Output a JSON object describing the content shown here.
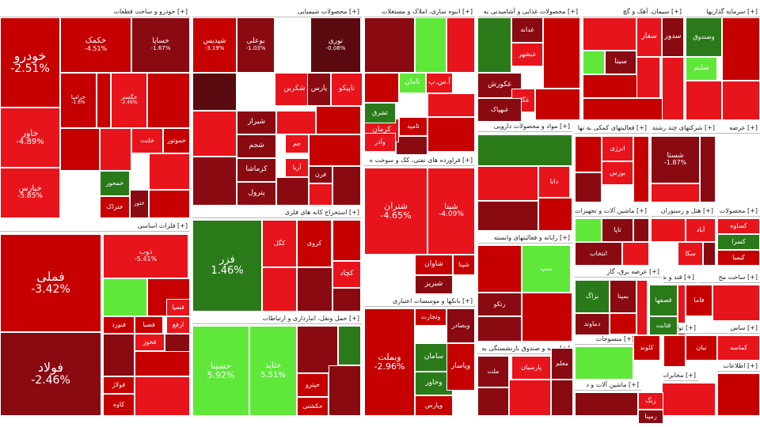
{
  "chart_data": {
    "type": "treemap",
    "colors": {
      "strong_red": "#c60000",
      "red": "#e8141c",
      "dark_red": "#8a0a12",
      "maroon": "#5a0a0e",
      "green": "#2b7a1a",
      "bright_green": "#5fe83a",
      "light_green": "#7df05a"
    },
    "sectors": [
      {
        "label": "[+] خودرو و ساخت قطعات",
        "tiles": [
          {
            "symbol": "خودرو",
            "value": "-2.51%"
          },
          {
            "symbol": "خاور",
            "value": "-4.89%"
          },
          {
            "symbol": "خپارس",
            "value": "-5.85%"
          },
          {
            "symbol": "خکمک",
            "value": "-4.51%"
          },
          {
            "symbol": "خساپا",
            "value": "-1.67%"
          },
          {
            "symbol": "خرامیا",
            "value": "-1.6%"
          },
          {
            "symbol": "خگستر",
            "value": "-2.46%"
          },
          {
            "symbol": "خلنت",
            "value": ""
          },
          {
            "symbol": "خموتور",
            "value": ""
          },
          {
            "symbol": "خمحور",
            "value": ""
          },
          {
            "symbol": "ختراک",
            "value": ""
          },
          {
            "symbol": "ختور",
            "value": ""
          }
        ]
      },
      {
        "label": "[+] محصولات شیمیایی",
        "tiles": [
          {
            "symbol": "شپدیس",
            "value": "-3.19%"
          },
          {
            "symbol": "بوعلی",
            "value": "-1.03%"
          },
          {
            "symbol": "نوری",
            "value": "-0.08%"
          },
          {
            "symbol": "شکربن",
            "value": ""
          },
          {
            "symbol": "پارس",
            "value": ""
          },
          {
            "symbol": "تاپیکو",
            "value": ""
          },
          {
            "symbol": "شیراز",
            "value": ""
          },
          {
            "symbol": "شجم",
            "value": ""
          },
          {
            "symbol": "کرماشا",
            "value": ""
          },
          {
            "symbol": "پترول",
            "value": ""
          },
          {
            "symbol": "جم",
            "value": ""
          },
          {
            "symbol": "آریا",
            "value": ""
          },
          {
            "symbol": "فرن",
            "value": ""
          }
        ]
      },
      {
        "label": "[+] انبوه سازی، املاک و مستغلات",
        "tiles": [
          {
            "symbol": "کرمان",
            "value": ""
          },
          {
            "symbol": "ثامان",
            "value": ""
          },
          {
            "symbol": "آ.س.پ",
            "value": ""
          },
          {
            "symbol": "ثامید",
            "value": ""
          },
          {
            "symbol": "ثشرق",
            "value": ""
          },
          {
            "symbol": "وآذر",
            "value": ""
          }
        ]
      },
      {
        "label": "[+] محصولات غذایی و آشامیدنی به",
        "tiles": [
          {
            "symbol": "غدانه",
            "value": ""
          },
          {
            "symbol": "غبشهر",
            "value": ""
          },
          {
            "symbol": "غکورش",
            "value": ""
          },
          {
            "symbol": "غگل",
            "value": ""
          },
          {
            "symbol": "غبهپاک",
            "value": ""
          }
        ]
      },
      {
        "label": "[+] سیمان، آهک و گچ",
        "tiles": [
          {
            "symbol": "سفار",
            "value": ""
          },
          {
            "symbol": "سدور",
            "value": ""
          },
          {
            "symbol": "سیتا",
            "value": ""
          },
          {
            "symbol": "سلیم",
            "value": ""
          }
        ]
      },
      {
        "label": "[+] سرمایه گذاریها",
        "tiles": [
          {
            "symbol": "وصندوق",
            "value": ""
          }
        ]
      },
      {
        "label": "[+] فلزات اساسی",
        "tiles": [
          {
            "symbol": "فملی",
            "value": "-3.42%"
          },
          {
            "symbol": "فولاد",
            "value": "-2.46%"
          },
          {
            "symbol": "ذوب",
            "value": "-5.41%"
          },
          {
            "symbol": "فخوز",
            "value": ""
          },
          {
            "symbol": "فصبا",
            "value": ""
          },
          {
            "symbol": "فسپا",
            "value": ""
          },
          {
            "symbol": "ارفع",
            "value": ""
          },
          {
            "symbol": "فنورد",
            "value": ""
          },
          {
            "symbol": "فولاژ",
            "value": ""
          },
          {
            "symbol": "کاوه",
            "value": ""
          }
        ]
      },
      {
        "label": "[+] استخراج کانه های فلزی",
        "tiles": [
          {
            "symbol": "فزر",
            "value": "1.46%"
          },
          {
            "symbol": "کگل",
            "value": ""
          },
          {
            "symbol": "کچاد",
            "value": ""
          },
          {
            "symbol": "کروی",
            "value": ""
          }
        ]
      },
      {
        "label": "[+] حمل ونقل، انبارداری و ارتباطات",
        "tiles": [
          {
            "symbol": "حسینا",
            "value": "5.92%"
          },
          {
            "symbol": "حتاید",
            "value": "5.51%"
          },
          {
            "symbol": "حپترو",
            "value": ""
          },
          {
            "symbol": "حکشتی",
            "value": ""
          }
        ]
      },
      {
        "label": "[+] فراورده های نفتی، کک و سوخت ه",
        "tiles": [
          {
            "symbol": "شتران",
            "value": "-4.65%"
          },
          {
            "symbol": "شبنا",
            "value": "-4.09%"
          },
          {
            "symbol": "شاوان",
            "value": ""
          },
          {
            "symbol": "شبریز",
            "value": ""
          },
          {
            "symbol": "شپنا",
            "value": ""
          }
        ]
      },
      {
        "label": "[+] بانکها و موسسات اعتباری",
        "tiles": [
          {
            "symbol": "وبملت",
            "value": "-2.96%"
          },
          {
            "symbol": "وتجارت",
            "value": ""
          },
          {
            "symbol": "وبصادر",
            "value": ""
          },
          {
            "symbol": "سامان",
            "value": ""
          },
          {
            "symbol": "وخاور",
            "value": ""
          },
          {
            "symbol": "وپاسار",
            "value": ""
          },
          {
            "symbol": "وپارس",
            "value": ""
          }
        ]
      },
      {
        "label": "[+] مواد و محصولات دارویی",
        "tiles": [
          {
            "symbol": "دانا",
            "value": ""
          }
        ]
      },
      {
        "label": "[+] رایانه و فعالیتهای وابسته",
        "tiles": [
          {
            "symbol": "رتکو",
            "value": ""
          },
          {
            "symbol": "سپ",
            "value": ""
          }
        ]
      },
      {
        "label": "[+] عرضه برق، گاز",
        "tiles": [
          {
            "symbol": "بزاگ",
            "value": ""
          },
          {
            "symbol": "دماوند",
            "value": ""
          },
          {
            "symbol": "بمپنا",
            "value": ""
          }
        ]
      },
      {
        "label": "[+] فعالیتهای کمکی به نها",
        "tiles": [
          {
            "symbol": "انرژی",
            "value": ""
          },
          {
            "symbol": "بورس",
            "value": ""
          }
        ]
      },
      {
        "label": "[+] شرکتهای چند رشته",
        "tiles": [
          {
            "symbol": "شستا",
            "value": "-1.87%"
          }
        ]
      },
      {
        "label": "[+] ماشین آلات و تجهیزات",
        "tiles": [
          {
            "symbol": "تاپا",
            "value": ""
          },
          {
            "symbol": "انتخاب",
            "value": ""
          }
        ]
      },
      {
        "label": "[+] هتل و رستوران",
        "tiles": [
          {
            "symbol": "آباد",
            "value": ""
          },
          {
            "symbol": "سکا",
            "value": ""
          }
        ]
      },
      {
        "label": "[+] محصولات کانی غیرفلزی",
        "tiles": [
          {
            "symbol": "کساوه",
            "value": ""
          },
          {
            "symbol": "کسرا",
            "value": ""
          },
          {
            "symbol": "کیمیا",
            "value": ""
          }
        ]
      },
      {
        "label": "[+] قند و شکر",
        "tiles": [
          {
            "symbol": "قصفها",
            "value": ""
          },
          {
            "symbol": "قثابت",
            "value": ""
          }
        ]
      },
      {
        "label": "[+] ساخت مح",
        "tiles": [
          {
            "symbol": "فاما",
            "value": ""
          }
        ]
      },
      {
        "label": "[+] ساس",
        "tiles": [
          {
            "symbol": "کماسه",
            "value": ""
          }
        ]
      },
      {
        "label": "[+] بیمه و صندوق بازنشستگی به",
        "tiles": [
          {
            "symbol": "ملت",
            "value": ""
          },
          {
            "symbol": "پارسیان",
            "value": ""
          },
          {
            "symbol": "معلم",
            "value": ""
          }
        ]
      },
      {
        "label": "[+] منسوجات",
        "tiles": [
          {
            "symbol": "کلوند",
            "value": ""
          },
          {
            "symbol": "نیان",
            "value": ""
          }
        ]
      },
      {
        "label": "[+] ماشین آلات و د",
        "tiles": [
          {
            "symbol": "زنگ",
            "value": ""
          },
          {
            "symbol": "رمپنا",
            "value": ""
          }
        ]
      },
      {
        "label": "[+] اطلاعات",
        "tiles": []
      },
      {
        "label": "[+] تولید مح",
        "tiles": []
      },
      {
        "label": "[+] مخابرات",
        "tiles": []
      },
      {
        "label": "[+] عرضه",
        "tiles": []
      }
    ]
  }
}
